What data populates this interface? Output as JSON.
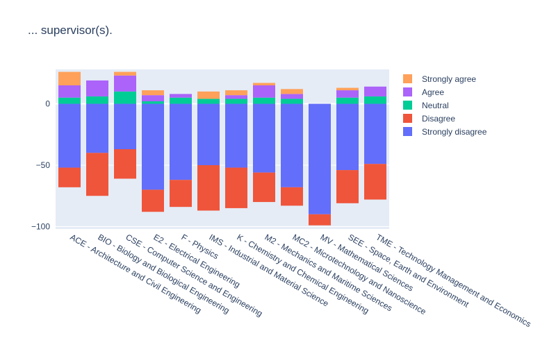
{
  "title": "... supervisor(s).",
  "colors": {
    "Strongly agree": "#FFA15A",
    "Agree": "#AB63FA",
    "Neutral": "#00CC96",
    "Disagree": "#EF553B",
    "Strongly disagree": "#636EFA"
  },
  "chart_data": {
    "type": "bar",
    "barmode": "relative",
    "title": "... supervisor(s).",
    "categories": [
      "ACE - Architecture and Civil Engineering",
      "BIO - Biology and Biological Engineering",
      "CSE - Computer Science and Engineering",
      "E2 - Electrical Engineering",
      "F - Physics",
      "IMS - Industrial and Material Science",
      "K - Chemistry and Chemical Engineering",
      "M2 - Mechanics and Maritime Sciences",
      "MC2 - Microtechnology and Nanoscience",
      "MV - Mathematical Sciences",
      "SEE - Space, Earth and Environment",
      "TME - Technology Management and Economics"
    ],
    "series": [
      {
        "name": "Strongly disagree",
        "values": [
          -52,
          -40,
          -37,
          -70,
          -62,
          -50,
          -52,
          -56,
          -68,
          -90,
          -54,
          -49
        ]
      },
      {
        "name": "Disagree",
        "values": [
          -16,
          -35,
          -24,
          -18,
          -22,
          -37,
          -33,
          -24,
          -15,
          -9,
          -27,
          -29
        ]
      },
      {
        "name": "Neutral",
        "values": [
          5,
          6,
          10,
          2,
          5,
          4,
          4,
          5,
          4,
          0,
          5,
          6
        ]
      },
      {
        "name": "Agree",
        "values": [
          10,
          13,
          13,
          5,
          3,
          0,
          3,
          10,
          4,
          0,
          6,
          8
        ]
      },
      {
        "name": "Strongly agree",
        "values": [
          11,
          0,
          3,
          4,
          0,
          6,
          4,
          2,
          4,
          0,
          2,
          0
        ]
      }
    ],
    "yticks": [
      0,
      -50,
      -100
    ],
    "ylim": [
      -102,
      28
    ],
    "xlabel": "",
    "ylabel": "",
    "legend_position": "right",
    "grid": true
  }
}
